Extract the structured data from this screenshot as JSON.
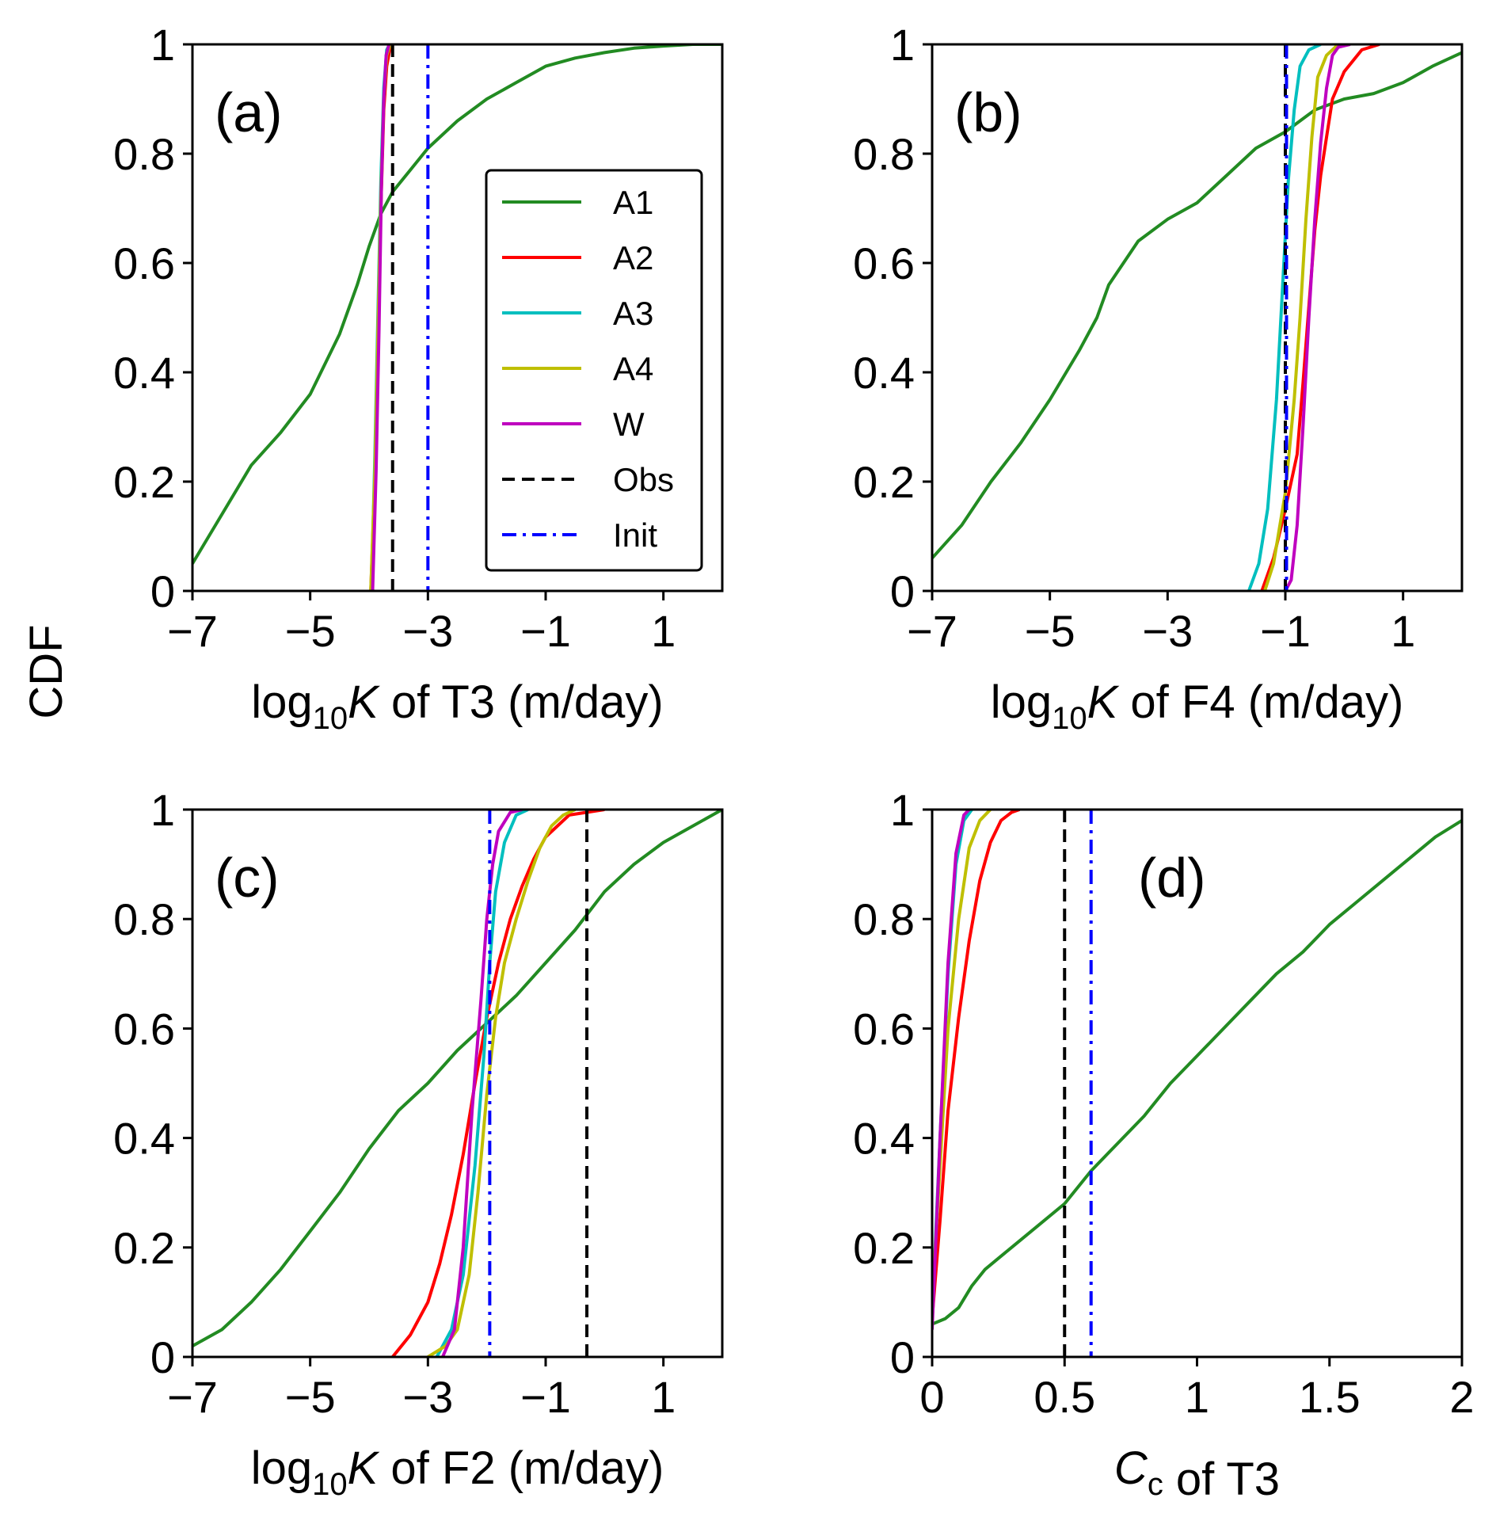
{
  "figure": {
    "ylabel": "CDF"
  },
  "legend": [
    {
      "name": "A1",
      "color": "#228B22",
      "dash": "solid"
    },
    {
      "name": "A2",
      "color": "#FF0000",
      "dash": "solid"
    },
    {
      "name": "A3",
      "color": "#00BFBF",
      "dash": "solid"
    },
    {
      "name": "A4",
      "color": "#BFBF00",
      "dash": "solid"
    },
    {
      "name": "W",
      "color": "#BF00BF",
      "dash": "solid"
    },
    {
      "name": "Obs",
      "color": "#000000",
      "dash": "dashed"
    },
    {
      "name": "Init",
      "color": "#0000FF",
      "dash": "dashdot"
    }
  ],
  "chart_data": [
    {
      "type": "line",
      "panel_label": "(a)",
      "xlabel": {
        "prefix": "log",
        "sub": "10",
        "italic": "K",
        "suffix": " of T3 (m/day)"
      },
      "xlim": [
        -7,
        2
      ],
      "ylim": [
        0,
        1
      ],
      "xticks": [
        -7,
        -5,
        -3,
        -1,
        1
      ],
      "xtick_labels": [
        "−7",
        "−5",
        "−3",
        "−1",
        "1"
      ],
      "yticks": [
        0,
        0.2,
        0.4,
        0.6,
        0.8,
        1
      ],
      "ytick_labels": [
        "0",
        "0.2",
        "0.4",
        "0.6",
        "0.8",
        "1"
      ],
      "series": [
        {
          "name": "A1",
          "x": [
            -7,
            -6.5,
            -6,
            -5.5,
            -5,
            -4.5,
            -4.2,
            -4,
            -3.8,
            -3.6,
            -3.3,
            -3,
            -2.5,
            -2,
            -1.5,
            -1,
            -0.5,
            0,
            0.5,
            1,
            1.5,
            2
          ],
          "y": [
            0.05,
            0.14,
            0.23,
            0.29,
            0.36,
            0.47,
            0.56,
            0.63,
            0.69,
            0.73,
            0.77,
            0.81,
            0.86,
            0.9,
            0.93,
            0.96,
            0.975,
            0.985,
            0.993,
            0.997,
            1,
            1
          ]
        },
        {
          "name": "A2",
          "x": [
            -3.97,
            -3.9,
            -3.85,
            -3.8,
            -3.75,
            -3.7,
            -3.65,
            -3.6
          ],
          "y": [
            0,
            0.2,
            0.45,
            0.7,
            0.88,
            0.96,
            0.99,
            1
          ]
        },
        {
          "name": "A3",
          "x": [
            -3.96,
            -3.9,
            -3.85,
            -3.8,
            -3.75,
            -3.7,
            -3.65
          ],
          "y": [
            0,
            0.25,
            0.5,
            0.75,
            0.92,
            0.99,
            1
          ]
        },
        {
          "name": "A4",
          "x": [
            -3.97,
            -3.9,
            -3.85,
            -3.8,
            -3.75,
            -3.7,
            -3.64
          ],
          "y": [
            0,
            0.22,
            0.47,
            0.72,
            0.9,
            0.98,
            1
          ]
        },
        {
          "name": "W",
          "x": [
            -3.94,
            -3.88,
            -3.83,
            -3.79,
            -3.75,
            -3.71,
            -3.66
          ],
          "y": [
            0,
            0.22,
            0.48,
            0.74,
            0.9,
            0.98,
            1
          ]
        }
      ],
      "obs": -3.6,
      "init": -3.0,
      "show_legend": true,
      "show_ylabel": true
    },
    {
      "type": "line",
      "panel_label": "(b)",
      "xlabel": {
        "prefix": "log",
        "sub": "10",
        "italic": "K",
        "suffix": " of F4 (m/day)"
      },
      "xlim": [
        -7,
        2
      ],
      "ylim": [
        0,
        1
      ],
      "xticks": [
        -7,
        -5,
        -3,
        -1,
        1
      ],
      "xtick_labels": [
        "−7",
        "−5",
        "−3",
        "−1",
        "1"
      ],
      "yticks": [
        0,
        0.2,
        0.4,
        0.6,
        0.8,
        1
      ],
      "ytick_labels": [
        "0",
        "0.2",
        "0.4",
        "0.6",
        "0.8",
        "1"
      ],
      "series": [
        {
          "name": "A1",
          "x": [
            -7,
            -6.5,
            -6,
            -5.5,
            -5,
            -4.5,
            -4.2,
            -4,
            -3.5,
            -3,
            -2.5,
            -2,
            -1.5,
            -1,
            -0.5,
            0,
            0.5,
            1,
            1.5,
            2
          ],
          "y": [
            0.06,
            0.12,
            0.2,
            0.27,
            0.35,
            0.44,
            0.5,
            0.56,
            0.64,
            0.68,
            0.71,
            0.76,
            0.81,
            0.84,
            0.88,
            0.9,
            0.91,
            0.93,
            0.96,
            0.985
          ]
        },
        {
          "name": "A2",
          "x": [
            -1.4,
            -1.2,
            -1.0,
            -0.8,
            -0.7,
            -0.6,
            -0.5,
            -0.4,
            -0.3,
            -0.2,
            0,
            0.3,
            0.6
          ],
          "y": [
            0,
            0.06,
            0.15,
            0.25,
            0.38,
            0.52,
            0.66,
            0.76,
            0.83,
            0.9,
            0.95,
            0.99,
            1
          ]
        },
        {
          "name": "A3",
          "x": [
            -1.62,
            -1.45,
            -1.3,
            -1.15,
            -1.05,
            -0.95,
            -0.85,
            -0.75,
            -0.6,
            -0.4
          ],
          "y": [
            0,
            0.05,
            0.15,
            0.35,
            0.55,
            0.75,
            0.88,
            0.96,
            0.99,
            1
          ]
        },
        {
          "name": "A4",
          "x": [
            -1.35,
            -1.2,
            -1.0,
            -0.85,
            -0.75,
            -0.65,
            -0.55,
            -0.45,
            -0.3,
            -0.1
          ],
          "y": [
            0,
            0.05,
            0.18,
            0.35,
            0.5,
            0.68,
            0.83,
            0.94,
            0.98,
            1
          ]
        },
        {
          "name": "W",
          "x": [
            -1.0,
            -0.9,
            -0.8,
            -0.7,
            -0.6,
            -0.5,
            -0.4,
            -0.3,
            -0.2,
            -0.1,
            0.1
          ],
          "y": [
            0,
            0.02,
            0.12,
            0.3,
            0.5,
            0.68,
            0.82,
            0.92,
            0.98,
            0.995,
            1
          ]
        }
      ],
      "obs": -1.0,
      "init": -0.98,
      "show_legend": false,
      "show_ylabel": false
    },
    {
      "type": "line",
      "panel_label": "(c)",
      "xlabel": {
        "prefix": "log",
        "sub": "10",
        "italic": "K",
        "suffix": " of F2 (m/day)"
      },
      "xlim": [
        -7,
        2
      ],
      "ylim": [
        0,
        1
      ],
      "xticks": [
        -7,
        -5,
        -3,
        -1,
        1
      ],
      "xtick_labels": [
        "−7",
        "−5",
        "−3",
        "−1",
        "1"
      ],
      "yticks": [
        0,
        0.2,
        0.4,
        0.6,
        0.8,
        1
      ],
      "ytick_labels": [
        "0",
        "0.2",
        "0.4",
        "0.6",
        "0.8",
        "1"
      ],
      "series": [
        {
          "name": "A1",
          "x": [
            -7,
            -6.5,
            -6,
            -5.5,
            -5,
            -4.5,
            -4,
            -3.5,
            -3,
            -2.5,
            -2,
            -1.5,
            -1,
            -0.5,
            0,
            0.5,
            1,
            1.5,
            2
          ],
          "y": [
            0.02,
            0.05,
            0.1,
            0.16,
            0.23,
            0.3,
            0.38,
            0.45,
            0.5,
            0.56,
            0.61,
            0.66,
            0.72,
            0.78,
            0.85,
            0.9,
            0.94,
            0.97,
            1
          ]
        },
        {
          "name": "A2",
          "x": [
            -3.6,
            -3.3,
            -3.0,
            -2.8,
            -2.6,
            -2.4,
            -2.2,
            -2.0,
            -1.8,
            -1.6,
            -1.4,
            -1.2,
            -1.0,
            -0.6,
            0
          ],
          "y": [
            0,
            0.04,
            0.1,
            0.17,
            0.26,
            0.37,
            0.5,
            0.62,
            0.72,
            0.8,
            0.86,
            0.91,
            0.95,
            0.99,
            1
          ]
        },
        {
          "name": "A3",
          "x": [
            -2.85,
            -2.6,
            -2.4,
            -2.2,
            -2.05,
            -1.95,
            -1.85,
            -1.7,
            -1.5,
            -1.3
          ],
          "y": [
            0,
            0.05,
            0.15,
            0.35,
            0.55,
            0.72,
            0.85,
            0.94,
            0.99,
            1
          ]
        },
        {
          "name": "A4",
          "x": [
            -3.0,
            -2.7,
            -2.5,
            -2.3,
            -2.15,
            -2.0,
            -1.85,
            -1.7,
            -1.5,
            -1.3,
            -1.1,
            -0.9,
            -0.7,
            -0.5
          ],
          "y": [
            0,
            0.02,
            0.05,
            0.15,
            0.3,
            0.48,
            0.62,
            0.72,
            0.8,
            0.87,
            0.93,
            0.97,
            0.99,
            1
          ]
        },
        {
          "name": "W",
          "x": [
            -2.75,
            -2.55,
            -2.4,
            -2.25,
            -2.1,
            -2.0,
            -1.9,
            -1.8,
            -1.6,
            -1.4
          ],
          "y": [
            0,
            0.05,
            0.2,
            0.45,
            0.65,
            0.8,
            0.9,
            0.96,
            0.995,
            1
          ]
        }
      ],
      "obs": -0.3,
      "init": -1.95,
      "show_legend": false,
      "show_ylabel": false
    },
    {
      "type": "line",
      "panel_label": "(d)",
      "xlabel": {
        "prefix": "",
        "sub": "c",
        "italic": "C",
        "suffix": " of T3"
      },
      "xlim": [
        0,
        2
      ],
      "ylim": [
        0,
        1
      ],
      "xticks": [
        0,
        0.5,
        1,
        1.5,
        2
      ],
      "xtick_labels": [
        "0",
        "0.5",
        "1",
        "1.5",
        "2"
      ],
      "yticks": [
        0,
        0.2,
        0.4,
        0.6,
        0.8,
        1
      ],
      "ytick_labels": [
        "0",
        "0.2",
        "0.4",
        "0.6",
        "0.8",
        "1"
      ],
      "series": [
        {
          "name": "A1",
          "x": [
            0,
            0.05,
            0.1,
            0.15,
            0.2,
            0.25,
            0.3,
            0.4,
            0.5,
            0.6,
            0.7,
            0.8,
            0.9,
            1.0,
            1.1,
            1.2,
            1.3,
            1.4,
            1.5,
            1.6,
            1.7,
            1.8,
            1.9,
            2.0
          ],
          "y": [
            0.06,
            0.07,
            0.09,
            0.13,
            0.16,
            0.18,
            0.2,
            0.24,
            0.28,
            0.34,
            0.39,
            0.44,
            0.5,
            0.55,
            0.6,
            0.65,
            0.7,
            0.74,
            0.79,
            0.83,
            0.87,
            0.91,
            0.95,
            0.98
          ]
        },
        {
          "name": "A2",
          "x": [
            0,
            0.03,
            0.06,
            0.1,
            0.14,
            0.18,
            0.22,
            0.26,
            0.3,
            0.33
          ],
          "y": [
            0.07,
            0.25,
            0.45,
            0.62,
            0.76,
            0.87,
            0.94,
            0.98,
            0.995,
            1
          ]
        },
        {
          "name": "A3",
          "x": [
            0,
            0.03,
            0.06,
            0.09,
            0.12,
            0.15
          ],
          "y": [
            0.08,
            0.4,
            0.7,
            0.9,
            0.98,
            1
          ]
        },
        {
          "name": "A4",
          "x": [
            0,
            0.03,
            0.06,
            0.1,
            0.14,
            0.18,
            0.22
          ],
          "y": [
            0.1,
            0.35,
            0.6,
            0.8,
            0.93,
            0.98,
            1
          ]
        },
        {
          "name": "W",
          "x": [
            0,
            0.03,
            0.06,
            0.09,
            0.12,
            0.14
          ],
          "y": [
            0.05,
            0.4,
            0.72,
            0.92,
            0.99,
            1
          ]
        }
      ],
      "obs": 0.5,
      "init": 0.6,
      "show_legend": false,
      "show_ylabel": false
    }
  ]
}
